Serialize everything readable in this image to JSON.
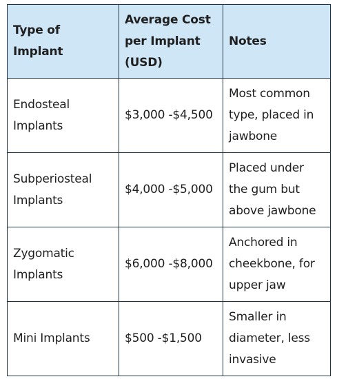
{
  "table": {
    "headers": [
      "Type of Implant",
      "Average Cost per Implant (USD)",
      "Notes"
    ],
    "rows": [
      {
        "type": "Endosteal Implants",
        "cost": "$3,000 -$4,500",
        "notes": "Most common type, placed in jawbone"
      },
      {
        "type": "Subperiosteal Implants",
        "cost": "$4,000 -$5,000",
        "notes": "Placed under the gum but above jawbone"
      },
      {
        "type": "Zygomatic Implants",
        "cost": "$6,000 -$8,000",
        "notes": "Anchored in cheekbone, for upper jaw"
      },
      {
        "type": "Mini Implants",
        "cost": "$500 -$1,500",
        "notes": "Smaller in diameter, less invasive"
      }
    ]
  }
}
